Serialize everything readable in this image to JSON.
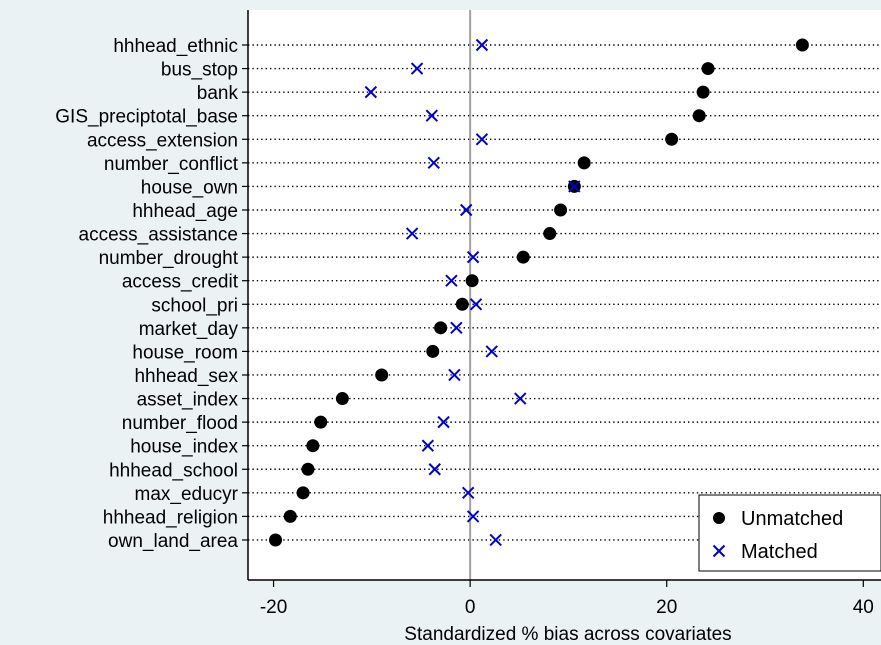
{
  "chart_data": {
    "type": "scatter",
    "categories": [
      "hhhead_ethnic",
      "bus_stop",
      "bank",
      "GIS_preciptotal_base",
      "access_extension",
      "number_conflict",
      "house_own",
      "hhhead_age",
      "access_assistance",
      "number_drought",
      "access_credit",
      "school_pri",
      "market_day",
      "house_room",
      "hhhead_sex",
      "asset_index",
      "number_flood",
      "house_index",
      "hhhead_school",
      "max_educyr",
      "hhhead_religion",
      "own_land_area"
    ],
    "series": [
      {
        "name": "Unmatched",
        "marker": "circle",
        "color": "#000000",
        "values": [
          33.8,
          24.2,
          23.7,
          23.3,
          20.5,
          11.6,
          10.6,
          9.2,
          8.1,
          5.4,
          0.2,
          -0.8,
          -3.0,
          -3.8,
          -9.0,
          -13.0,
          -15.2,
          -16.0,
          -16.5,
          -17.0,
          -18.3,
          -19.8
        ]
      },
      {
        "name": "Matched",
        "marker": "x",
        "color": "#0000cc",
        "values": [
          1.2,
          -5.4,
          -10.1,
          -3.9,
          1.2,
          -3.7,
          10.6,
          -0.4,
          -5.9,
          0.3,
          -1.9,
          0.6,
          -1.4,
          2.2,
          -1.6,
          5.1,
          -2.7,
          -4.3,
          -3.6,
          -0.2,
          0.3,
          2.6
        ]
      }
    ],
    "xlabel": "Standardized % bias across covariates",
    "xlim": [
      -22.6,
      41.8
    ],
    "xticks": [
      -20,
      0,
      20,
      40
    ],
    "xtick_labels": [
      "-20",
      "0",
      "20",
      "40"
    ],
    "reference_line": 0,
    "legend_position": "bottom-right",
    "grid": false
  }
}
